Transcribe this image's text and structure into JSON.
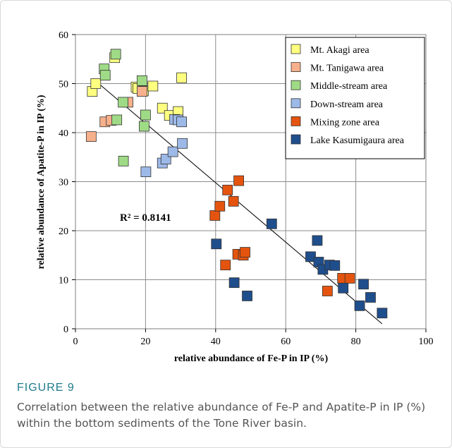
{
  "figure": {
    "label": "FIGURE 9",
    "caption": "Correlation between the relative abundance of Fe-P and Apatite-P in IP (%) within the bottom sediments of the Tone River basin."
  },
  "chart_data": {
    "type": "scatter",
    "xlabel": "relative abundance of Fe-P in IP (%)",
    "ylabel": "relative abundance of Apatite-P in IP (%)",
    "xlim": [
      0,
      100
    ],
    "ylim": [
      0,
      60
    ],
    "xticks": [
      0,
      20,
      40,
      60,
      80,
      100
    ],
    "yticks": [
      0,
      10,
      20,
      30,
      40,
      50,
      60
    ],
    "grid": true,
    "legend_position": "top-right",
    "annotation": "R² = 0.8141",
    "trendline": {
      "x": [
        5,
        87.5
      ],
      "y": [
        51,
        1
      ]
    },
    "series": [
      {
        "name": "Mt. Akagi area",
        "color": "#ffff80",
        "points": [
          [
            4.8,
            48.4
          ],
          [
            5.8,
            50.0
          ],
          [
            11.2,
            55.3
          ],
          [
            17.3,
            49.3
          ],
          [
            17.8,
            49.0
          ],
          [
            19.4,
            48.5
          ],
          [
            22.1,
            49.5
          ],
          [
            24.8,
            45.0
          ],
          [
            26.8,
            43.5
          ],
          [
            29.3,
            44.3
          ],
          [
            30.3,
            51.2
          ]
        ]
      },
      {
        "name": "Mt. Tanigawa area",
        "color": "#f7b08c",
        "points": [
          [
            4.5,
            39.2
          ],
          [
            8.4,
            42.2
          ],
          [
            10.2,
            42.5
          ],
          [
            15.0,
            46.2
          ],
          [
            19.0,
            48.4
          ]
        ]
      },
      {
        "name": "Middle-stream area",
        "color": "#9fdb86",
        "points": [
          [
            8.2,
            53.0
          ],
          [
            8.5,
            51.7
          ],
          [
            11.5,
            56.0
          ],
          [
            11.8,
            42.6
          ],
          [
            13.6,
            46.2
          ],
          [
            13.7,
            34.2
          ],
          [
            19.0,
            50.6
          ],
          [
            19.6,
            41.3
          ],
          [
            20.0,
            43.6
          ]
        ]
      },
      {
        "name": "Down-stream area",
        "color": "#9db9e8",
        "points": [
          [
            20.1,
            32.0
          ],
          [
            24.8,
            33.8
          ],
          [
            25.8,
            34.6
          ],
          [
            27.8,
            36.1
          ],
          [
            28.3,
            42.7
          ],
          [
            29.3,
            42.6
          ],
          [
            30.3,
            42.2
          ],
          [
            30.5,
            37.8
          ]
        ]
      },
      {
        "name": "Mixing zone area",
        "color": "#e5540e",
        "points": [
          [
            39.8,
            23.1
          ],
          [
            41.2,
            25.0
          ],
          [
            42.8,
            13.0
          ],
          [
            43.4,
            28.3
          ],
          [
            45.1,
            26.0
          ],
          [
            46.3,
            15.2
          ],
          [
            46.6,
            30.2
          ],
          [
            47.9,
            15.0
          ],
          [
            48.4,
            15.6
          ],
          [
            71.9,
            7.7
          ],
          [
            76.2,
            10.3
          ],
          [
            78.3,
            10.3
          ]
        ]
      },
      {
        "name": "Lake Kasumigaura area",
        "color": "#1f4e8c",
        "points": [
          [
            40.2,
            17.3
          ],
          [
            45.3,
            9.4
          ],
          [
            49.0,
            6.7
          ],
          [
            56.0,
            21.4
          ],
          [
            67.1,
            14.7
          ],
          [
            69.0,
            18.0
          ],
          [
            69.4,
            13.6
          ],
          [
            70.6,
            12.1
          ],
          [
            72.5,
            13.0
          ],
          [
            74.0,
            12.9
          ],
          [
            76.4,
            8.3
          ],
          [
            81.1,
            4.7
          ],
          [
            82.2,
            9.1
          ],
          [
            84.2,
            6.4
          ],
          [
            87.5,
            3.2
          ]
        ]
      }
    ]
  }
}
